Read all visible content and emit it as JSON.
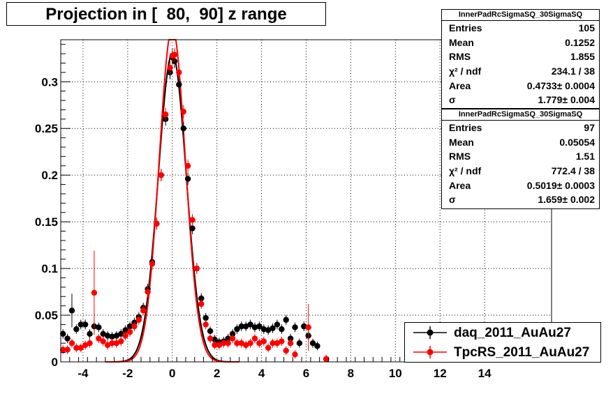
{
  "title": "Projection in [  80,  90] z range",
  "stats_boxes": [
    {
      "name": "InnerPadRcSigmaSQ_30SigmaSQ",
      "rows": [
        {
          "key": "Entries",
          "value": "105"
        },
        {
          "key": "Mean",
          "value": "0.1252"
        },
        {
          "key": "RMS",
          "value": "1.855"
        },
        {
          "key": "χ² / ndf",
          "value": "234.1 / 38"
        },
        {
          "key": "Area",
          "value": "0.4733± 0.0004"
        },
        {
          "key": "σ",
          "value": "1.779± 0.004"
        }
      ]
    },
    {
      "name": "InnerPadRcSigmaSQ_30SigmaSQ",
      "rows": [
        {
          "key": "Entries",
          "value": "97"
        },
        {
          "key": "Mean",
          "value": "0.05054"
        },
        {
          "key": "RMS",
          "value": "1.51"
        },
        {
          "key": "χ² / ndf",
          "value": "772.4 / 38"
        },
        {
          "key": "Area",
          "value": "0.5019± 0.0003"
        },
        {
          "key": "σ",
          "value": "1.659± 0.002"
        }
      ]
    }
  ],
  "chart_data": {
    "type": "scatter",
    "title": "Projection in [  80,  90] z range",
    "xlabel": "",
    "ylabel": "",
    "xlim": [
      -5,
      17
    ],
    "ylim": [
      0,
      0.345
    ],
    "x_ticks": [
      -4,
      -2,
      0,
      2,
      4,
      6,
      8,
      10,
      12,
      14
    ],
    "x_tick_labels": [
      "-4",
      "-2",
      "0",
      "2",
      "4",
      "6",
      "8",
      "10",
      "12",
      "14"
    ],
    "y_ticks": [
      0,
      0.05,
      0.1,
      0.15,
      0.2,
      0.25,
      0.3
    ],
    "y_tick_labels": [
      "0",
      "0.05",
      "0.1",
      "0.15",
      "0.2",
      "0.25",
      "0.3"
    ],
    "grid": true,
    "legend_position": "bottom-right",
    "series": [
      {
        "name": "daq_2011_AuAu27",
        "color": "#000000",
        "marker": "circle",
        "points": [
          [
            -4.9,
            0.03
          ],
          [
            -4.7,
            0.025
          ],
          [
            -4.5,
            0.055
          ],
          [
            -4.3,
            0.035
          ],
          [
            -4.1,
            0.04
          ],
          [
            -3.9,
            0.04
          ],
          [
            -3.7,
            0.03
          ],
          [
            -3.5,
            0.038
          ],
          [
            -3.3,
            0.037
          ],
          [
            -3.1,
            0.03
          ],
          [
            -2.9,
            0.028
          ],
          [
            -2.7,
            0.027
          ],
          [
            -2.5,
            0.028
          ],
          [
            -2.3,
            0.03
          ],
          [
            -2.1,
            0.034
          ],
          [
            -1.9,
            0.038
          ],
          [
            -1.7,
            0.042
          ],
          [
            -1.5,
            0.048
          ],
          [
            -1.3,
            0.058
          ],
          [
            -1.1,
            0.078
          ],
          [
            -0.9,
            0.107
          ],
          [
            -0.7,
            0.148
          ],
          [
            -0.5,
            0.2
          ],
          [
            -0.3,
            0.26
          ],
          [
            -0.1,
            0.31
          ],
          [
            0.0,
            0.326
          ],
          [
            0.1,
            0.322
          ],
          [
            0.3,
            0.297
          ],
          [
            0.5,
            0.25
          ],
          [
            0.7,
            0.196
          ],
          [
            0.9,
            0.143
          ],
          [
            1.1,
            0.1
          ],
          [
            1.3,
            0.068
          ],
          [
            1.5,
            0.047
          ],
          [
            1.7,
            0.033
          ],
          [
            1.9,
            0.024
          ],
          [
            2.1,
            0.021
          ],
          [
            2.3,
            0.022
          ],
          [
            2.5,
            0.025
          ],
          [
            2.7,
            0.03
          ],
          [
            2.9,
            0.035
          ],
          [
            3.1,
            0.038
          ],
          [
            3.3,
            0.038
          ],
          [
            3.5,
            0.04
          ],
          [
            3.7,
            0.037
          ],
          [
            3.9,
            0.038
          ],
          [
            4.1,
            0.035
          ],
          [
            4.3,
            0.034
          ],
          [
            4.5,
            0.036
          ],
          [
            4.7,
            0.04
          ],
          [
            4.9,
            0.035
          ],
          [
            5.1,
            0.045
          ],
          [
            5.3,
            0.025
          ],
          [
            5.5,
            0.037
          ],
          [
            5.7,
            0.02
          ],
          [
            5.9,
            0.038
          ],
          [
            6.1,
            0.028
          ],
          [
            6.3,
            0.02
          ],
          [
            6.5,
            0.017
          ],
          [
            6.9,
            0.003
          ]
        ]
      },
      {
        "name": "TpcRS_2011_AuAu27",
        "color": "#ff0000",
        "marker": "circle",
        "points": [
          [
            -4.9,
            0.013
          ],
          [
            -4.7,
            0.013
          ],
          [
            -4.5,
            0.02
          ],
          [
            -4.3,
            0.015
          ],
          [
            -4.1,
            0.015
          ],
          [
            -3.9,
            0.018
          ],
          [
            -3.7,
            0.02
          ],
          [
            -3.5,
            0.074
          ],
          [
            -3.3,
            0.025
          ],
          [
            -3.1,
            0.022
          ],
          [
            -2.9,
            0.018
          ],
          [
            -2.7,
            0.02
          ],
          [
            -2.5,
            0.02
          ],
          [
            -2.3,
            0.022
          ],
          [
            -2.1,
            0.028
          ],
          [
            -1.9,
            0.032
          ],
          [
            -1.7,
            0.038
          ],
          [
            -1.5,
            0.045
          ],
          [
            -1.3,
            0.055
          ],
          [
            -1.1,
            0.075
          ],
          [
            -0.9,
            0.105
          ],
          [
            -0.7,
            0.148
          ],
          [
            -0.5,
            0.2
          ],
          [
            -0.3,
            0.265
          ],
          [
            -0.1,
            0.315
          ],
          [
            0.0,
            0.328
          ],
          [
            0.1,
            0.329
          ],
          [
            0.3,
            0.31
          ],
          [
            0.5,
            0.268
          ],
          [
            0.7,
            0.21
          ],
          [
            0.9,
            0.152
          ],
          [
            1.1,
            0.1
          ],
          [
            1.3,
            0.062
          ],
          [
            1.5,
            0.04
          ],
          [
            1.7,
            0.025
          ],
          [
            1.9,
            0.018
          ],
          [
            2.1,
            0.018
          ],
          [
            2.3,
            0.02
          ],
          [
            2.5,
            0.02
          ],
          [
            2.7,
            0.025
          ],
          [
            2.9,
            0.02
          ],
          [
            3.1,
            0.02
          ],
          [
            3.3,
            0.018
          ],
          [
            3.5,
            0.02
          ],
          [
            3.7,
            0.025
          ],
          [
            3.9,
            0.02
          ],
          [
            4.1,
            0.022
          ],
          [
            4.3,
            0.015
          ],
          [
            4.5,
            0.02
          ],
          [
            4.7,
            0.02
          ],
          [
            4.9,
            0.022
          ],
          [
            5.1,
            0.012
          ],
          [
            5.3,
            0.02
          ],
          [
            5.5,
            0.008
          ],
          [
            6.1,
            0.037
          ],
          [
            6.9,
            0.003
          ]
        ]
      }
    ],
    "fit_curves": [
      {
        "color": "#000000",
        "mean": 0.0,
        "sigma": 0.625,
        "amplitude": 0.33
      },
      {
        "color": "#ff0000",
        "mean": 0.0,
        "sigma": 0.585,
        "amplitude": 0.358
      }
    ]
  },
  "legend": [
    {
      "label": "daq_2011_AuAu27",
      "color": "#000000"
    },
    {
      "label": "TpcRS_2011_AuAu27",
      "color": "#ff0000"
    }
  ]
}
